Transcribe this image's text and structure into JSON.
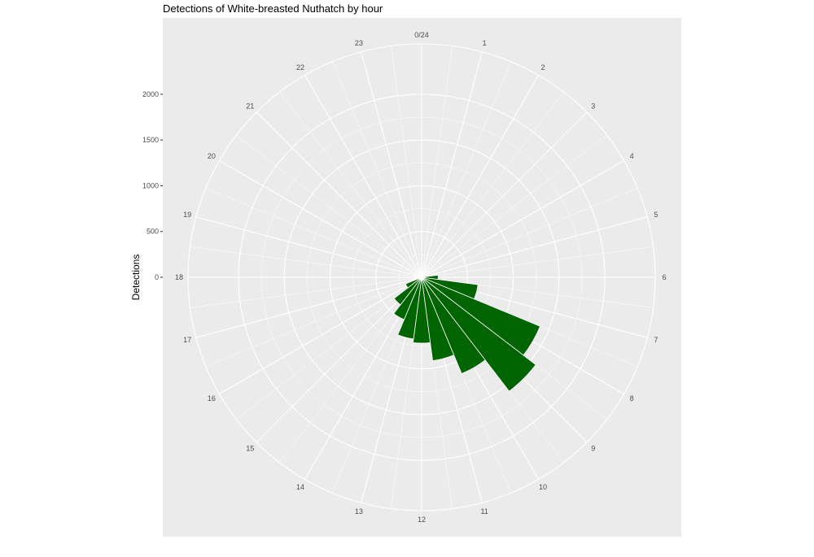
{
  "chart_data": {
    "type": "bar",
    "coord": "polar",
    "title": "Detections of White-breasted Nuthatch by hour",
    "ylabel": "Detections",
    "categories": [
      "0/24",
      "1",
      "2",
      "3",
      "4",
      "5",
      "6",
      "7",
      "8",
      "9",
      "10",
      "11",
      "12",
      "13",
      "14",
      "15",
      "16",
      "17",
      "18",
      "19",
      "20",
      "21",
      "22",
      "23"
    ],
    "values": [
      0,
      0,
      0,
      0,
      0,
      0,
      180,
      620,
      1400,
      1570,
      1140,
      920,
      720,
      680,
      500,
      380,
      190,
      40,
      25,
      15,
      5,
      0,
      0,
      0
    ],
    "y_ticks": [
      0,
      500,
      1000,
      1500,
      2000
    ],
    "ylim": [
      0,
      2550
    ],
    "bar_color": "#006400",
    "background": "#ebebeb",
    "grid_color": "#ffffff"
  }
}
